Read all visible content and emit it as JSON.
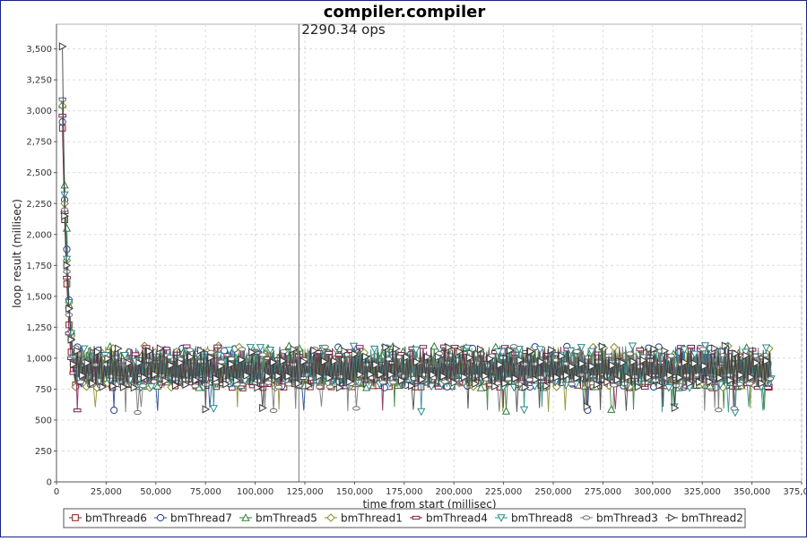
{
  "chart_data": {
    "type": "line",
    "title": "compiler.compiler",
    "annotation": "2290.34 ops",
    "annotation_x": 122000,
    "xlabel": "time from start (millisec)",
    "ylabel": "loop result (millisec)",
    "xlim": [
      0,
      375000
    ],
    "ylim": [
      0,
      3700
    ],
    "x_ticks": [
      0,
      25000,
      50000,
      75000,
      100000,
      125000,
      150000,
      175000,
      200000,
      225000,
      250000,
      275000,
      300000,
      325000,
      350000,
      375000
    ],
    "x_tick_labels": [
      "0",
      "25,000",
      "50,000",
      "75,000",
      "100,000",
      "125,000",
      "150,000",
      "175,000",
      "200,000",
      "225,000",
      "250,000",
      "275,000",
      "300,000",
      "325,000",
      "350,000",
      "375,000"
    ],
    "y_ticks": [
      0,
      250,
      500,
      750,
      1000,
      1250,
      1500,
      1750,
      2000,
      2250,
      2500,
      2750,
      3000,
      3250,
      3500
    ],
    "y_tick_labels": [
      "0",
      "250",
      "500",
      "750",
      "1,000",
      "1,250",
      "1,500",
      "1,750",
      "2,000",
      "2,250",
      "2,500",
      "2,750",
      "3,000",
      "3,250",
      "3,500"
    ],
    "grid": true,
    "legend_position": "bottom",
    "x_start": 3000,
    "x_end": 360000,
    "step_ms": 850,
    "series": [
      {
        "name": "bmThread6",
        "marker": "square",
        "color": "#8b1a1a",
        "start": [
          2860,
          2120,
          1600,
          1270,
          1050,
          900
        ]
      },
      {
        "name": "bmThread7",
        "marker": "circle",
        "color": "#1f3f8f",
        "start": [
          2910,
          2280,
          1880,
          1470,
          1200,
          1000
        ]
      },
      {
        "name": "bmThread5",
        "marker": "triangle",
        "color": "#2e7d32",
        "start": [
          3050,
          2400,
          2050,
          1430,
          1220,
          1000
        ]
      },
      {
        "name": "bmThread1",
        "marker": "diamond",
        "color": "#8a8a2a",
        "start": [
          3040,
          2250,
          1790,
          1450,
          1180,
          980
        ]
      },
      {
        "name": "bmThread4",
        "marker": "bar",
        "color": "#7b1f4f",
        "start": [
          2960,
          2180,
          1650,
          1200,
          1000,
          880
        ]
      },
      {
        "name": "bmThread8",
        "marker": "tridown",
        "color": "#2a8a8a",
        "start": [
          3080,
          2320,
          1800,
          1450,
          1200,
          1000
        ]
      },
      {
        "name": "bmThread3",
        "marker": "ellipse",
        "color": "#707070",
        "start": [
          3090,
          2200,
          1700,
          1350,
          1150,
          950
        ]
      },
      {
        "name": "bmThread2",
        "marker": "triright",
        "color": "#3a3a3a",
        "start": [
          3520,
          2150,
          1750,
          1400,
          1150,
          950
        ]
      }
    ]
  }
}
